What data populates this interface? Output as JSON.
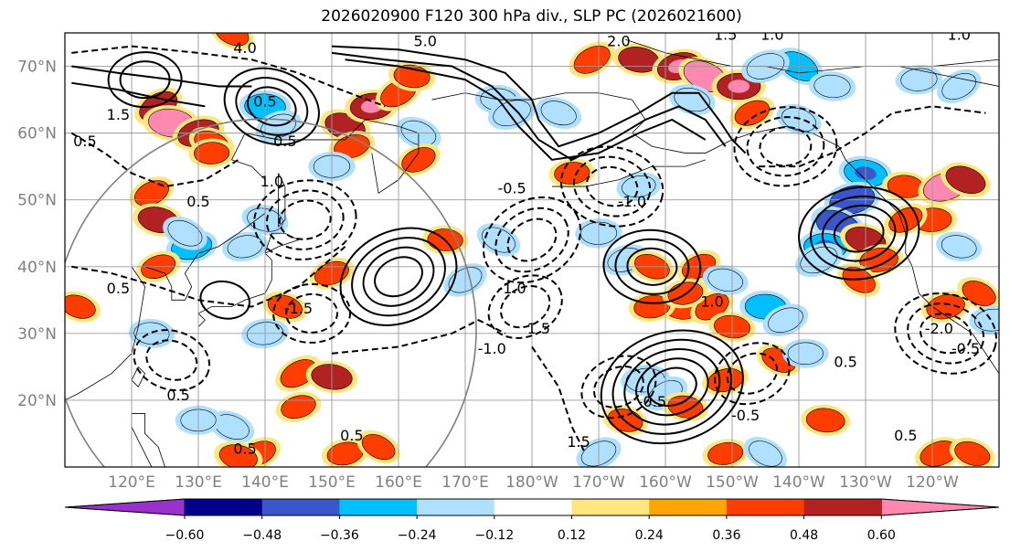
{
  "chart_data": {
    "type": "heatmap",
    "title": "2026020900 F120 300 hPa div., SLP PC (2026021600)",
    "lat_ticks": [
      "20°N",
      "30°N",
      "40°N",
      "50°N",
      "60°N",
      "70°N"
    ],
    "lon_ticks": [
      "120°E",
      "130°E",
      "140°E",
      "150°E",
      "160°E",
      "170°E",
      "180°W",
      "170°W",
      "160°W",
      "150°W",
      "140°W",
      "130°W",
      "120°W"
    ],
    "lat_range": [
      10,
      75
    ],
    "lon_range": [
      110,
      250
    ],
    "grid": true,
    "colorbar": {
      "orientation": "horizontal",
      "extend": "both",
      "levels": [
        -0.72,
        -0.6,
        -0.48,
        -0.36,
        -0.24,
        -0.12,
        0.12,
        0.24,
        0.36,
        0.48,
        0.6,
        0.72
      ],
      "tick_labels": [
        "−0.60",
        "−0.48",
        "−0.36",
        "−0.24",
        "−0.12",
        "0.12",
        "0.24",
        "0.36",
        "0.48",
        "0.60"
      ],
      "colors": [
        "#9932cc",
        "#00008b",
        "#3a56c9",
        "#00bfff",
        "#b0e0ff",
        "#ffffff",
        "#ffe680",
        "#ffa500",
        "#ff3d00",
        "#b22222",
        "#ff88b0"
      ]
    },
    "contour_labels": [
      "5.0",
      "4.0",
      "2.0",
      "1.5",
      "1.0",
      "0.5",
      "-0.5",
      "-1.0",
      "-1.5",
      "-2.0"
    ],
    "contour_label_items": [
      {
        "text": "5.0",
        "lon": 164,
        "lat": 73
      },
      {
        "text": "4.0",
        "lon": 137,
        "lat": 72
      },
      {
        "text": "2.0",
        "lon": 193,
        "lat": 73
      },
      {
        "text": "1.5",
        "lon": 209,
        "lat": 74
      },
      {
        "text": "1.0",
        "lon": 216,
        "lat": 74
      },
      {
        "text": "1.0",
        "lon": 244,
        "lat": 74
      },
      {
        "text": "1.5",
        "lon": 118,
        "lat": 62
      },
      {
        "text": "0.5",
        "lon": 113,
        "lat": 58
      },
      {
        "text": "0.5",
        "lon": 140,
        "lat": 64
      },
      {
        "text": "0.5",
        "lon": 143,
        "lat": 58
      },
      {
        "text": "1.0",
        "lon": 141,
        "lat": 52
      },
      {
        "text": "0.5",
        "lon": 130,
        "lat": 49
      },
      {
        "text": "-0.5",
        "lon": 177,
        "lat": 51
      },
      {
        "text": "-1.0",
        "lon": 195,
        "lat": 49
      },
      {
        "text": "-1.0",
        "lon": 177,
        "lat": 36
      },
      {
        "text": "-1.5",
        "lon": 145,
        "lat": 33
      },
      {
        "text": "0.5",
        "lon": 118,
        "lat": 36
      },
      {
        "text": "-1.0",
        "lon": 174,
        "lat": 27
      },
      {
        "text": "1.0",
        "lon": 207,
        "lat": 34
      },
      {
        "text": "1.5",
        "lon": 181,
        "lat": 30
      },
      {
        "text": "-0.5",
        "lon": 198,
        "lat": 19
      },
      {
        "text": "-0.5",
        "lon": 212,
        "lat": 17
      },
      {
        "text": "1.5",
        "lon": 187,
        "lat": 13
      },
      {
        "text": "0.5",
        "lon": 127,
        "lat": 20
      },
      {
        "text": "0.5",
        "lon": 153,
        "lat": 14
      },
      {
        "text": "0.5",
        "lon": 137,
        "lat": 12
      },
      {
        "text": "0.5",
        "lon": 236,
        "lat": 14
      },
      {
        "text": "0.5",
        "lon": 227,
        "lat": 25
      },
      {
        "text": "-2.0",
        "lon": 241,
        "lat": 30
      },
      {
        "text": "-0.5",
        "lon": 245,
        "lat": 27
      }
    ],
    "div_cells": [
      {
        "lon": 124,
        "lat": 64,
        "v": 0.4
      },
      {
        "lon": 126,
        "lat": 61.5,
        "v": 0.52
      },
      {
        "lon": 130,
        "lat": 60,
        "v": 0.42
      },
      {
        "lon": 132,
        "lat": 58.5,
        "v": 0.3
      },
      {
        "lon": 132,
        "lat": 57,
        "v": 0.28
      },
      {
        "lon": 123,
        "lat": 51,
        "v": 0.3
      },
      {
        "lon": 124,
        "lat": 47,
        "v": 0.4
      },
      {
        "lon": 129,
        "lat": 43,
        "v": -0.4
      },
      {
        "lon": 128,
        "lat": 45,
        "v": -0.3
      },
      {
        "lon": 140,
        "lat": 64,
        "v": -0.4
      },
      {
        "lon": 142,
        "lat": 61,
        "v": -0.3
      },
      {
        "lon": 152,
        "lat": 61,
        "v": 0.4
      },
      {
        "lon": 156,
        "lat": 64,
        "v": 0.45
      },
      {
        "lon": 160,
        "lat": 66,
        "v": 0.35
      },
      {
        "lon": 162,
        "lat": 68.5,
        "v": 0.3
      },
      {
        "lon": 153,
        "lat": 58,
        "v": 0.3
      },
      {
        "lon": 163,
        "lat": 60,
        "v": -0.3
      },
      {
        "lon": 150,
        "lat": 55,
        "v": -0.3
      },
      {
        "lon": 163,
        "lat": 56,
        "v": 0.28
      },
      {
        "lon": 140,
        "lat": 47,
        "v": -0.3
      },
      {
        "lon": 137,
        "lat": 43,
        "v": -0.28
      },
      {
        "lon": 135,
        "lat": 75,
        "v": 0.3
      },
      {
        "lon": 175,
        "lat": 65,
        "v": -0.3
      },
      {
        "lon": 177,
        "lat": 63,
        "v": -0.35
      },
      {
        "lon": 184,
        "lat": 63,
        "v": -0.3
      },
      {
        "lon": 186,
        "lat": 54,
        "v": 0.28
      },
      {
        "lon": 189,
        "lat": 71,
        "v": 0.35
      },
      {
        "lon": 196,
        "lat": 71,
        "v": 0.4
      },
      {
        "lon": 202,
        "lat": 70,
        "v": 0.45
      },
      {
        "lon": 206,
        "lat": 68.5,
        "v": 0.5
      },
      {
        "lon": 211,
        "lat": 67,
        "v": 0.45
      },
      {
        "lon": 213,
        "lat": 63,
        "v": 0.3
      },
      {
        "lon": 204,
        "lat": 65,
        "v": -0.3
      },
      {
        "lon": 196,
        "lat": 52,
        "v": -0.25
      },
      {
        "lon": 220,
        "lat": 70,
        "v": -0.4
      },
      {
        "lon": 225,
        "lat": 67,
        "v": -0.3
      },
      {
        "lon": 215,
        "lat": 70,
        "v": -0.35
      },
      {
        "lon": 220,
        "lat": 62,
        "v": -0.28
      },
      {
        "lon": 238,
        "lat": 68,
        "v": -0.3
      },
      {
        "lon": 244,
        "lat": 67,
        "v": -0.3
      },
      {
        "lon": 230,
        "lat": 54,
        "v": -0.45
      },
      {
        "lon": 228,
        "lat": 50,
        "v": -0.5
      },
      {
        "lon": 226,
        "lat": 46,
        "v": -0.55
      },
      {
        "lon": 224,
        "lat": 43,
        "v": -0.45
      },
      {
        "lon": 223,
        "lat": 41,
        "v": -0.35
      },
      {
        "lon": 230,
        "lat": 44,
        "v": 0.4
      },
      {
        "lon": 232,
        "lat": 41,
        "v": 0.35
      },
      {
        "lon": 229,
        "lat": 38,
        "v": 0.28
      },
      {
        "lon": 236,
        "lat": 52,
        "v": 0.3
      },
      {
        "lon": 242,
        "lat": 52,
        "v": 0.5
      },
      {
        "lon": 245,
        "lat": 53,
        "v": 0.4
      },
      {
        "lon": 240,
        "lat": 47,
        "v": 0.35
      },
      {
        "lon": 236,
        "lat": 47,
        "v": 0.28
      },
      {
        "lon": 244,
        "lat": 43,
        "v": -0.28
      },
      {
        "lon": 242,
        "lat": 34,
        "v": 0.35
      },
      {
        "lon": 247,
        "lat": 36,
        "v": 0.28
      },
      {
        "lon": 215,
        "lat": 34,
        "v": -0.4
      },
      {
        "lon": 218,
        "lat": 32,
        "v": -0.3
      },
      {
        "lon": 202,
        "lat": 34,
        "v": 0.35
      },
      {
        "lon": 198,
        "lat": 34,
        "v": 0.3
      },
      {
        "lon": 207,
        "lat": 34,
        "v": 0.3
      },
      {
        "lon": 210,
        "lat": 31,
        "v": 0.3
      },
      {
        "lon": 194,
        "lat": 41,
        "v": -0.3
      },
      {
        "lon": 198,
        "lat": 40,
        "v": 0.3
      },
      {
        "lon": 190,
        "lat": 45,
        "v": -0.3
      },
      {
        "lon": 205,
        "lat": 40,
        "v": 0.28
      },
      {
        "lon": 209,
        "lat": 38,
        "v": -0.28
      },
      {
        "lon": 203,
        "lat": 36,
        "v": 0.28
      },
      {
        "lon": 175,
        "lat": 44,
        "v": -0.28
      },
      {
        "lon": 167,
        "lat": 44,
        "v": 0.28
      },
      {
        "lon": 150,
        "lat": 39,
        "v": 0.28
      },
      {
        "lon": 143,
        "lat": 34,
        "v": 0.28
      },
      {
        "lon": 140,
        "lat": 30,
        "v": -0.3
      },
      {
        "lon": 145,
        "lat": 24,
        "v": 0.35
      },
      {
        "lon": 150,
        "lat": 23.5,
        "v": 0.4
      },
      {
        "lon": 145,
        "lat": 19,
        "v": 0.28
      },
      {
        "lon": 135,
        "lat": 16,
        "v": -0.3
      },
      {
        "lon": 130,
        "lat": 17,
        "v": -0.28
      },
      {
        "lon": 139,
        "lat": 12,
        "v": 0.3
      },
      {
        "lon": 136,
        "lat": 11.5,
        "v": 0.35
      },
      {
        "lon": 152,
        "lat": 12,
        "v": 0.3
      },
      {
        "lon": 157,
        "lat": 13,
        "v": 0.28
      },
      {
        "lon": 123,
        "lat": 30,
        "v": -0.28
      },
      {
        "lon": 124,
        "lat": 40,
        "v": 0.28
      },
      {
        "lon": 112,
        "lat": 34,
        "v": 0.28
      },
      {
        "lon": 197,
        "lat": 23,
        "v": -0.35
      },
      {
        "lon": 200,
        "lat": 21,
        "v": -0.3
      },
      {
        "lon": 203,
        "lat": 19,
        "v": 0.28
      },
      {
        "lon": 209,
        "lat": 23,
        "v": 0.3
      },
      {
        "lon": 217,
        "lat": 26,
        "v": 0.28
      },
      {
        "lon": 221,
        "lat": 27,
        "v": -0.28
      },
      {
        "lon": 190,
        "lat": 12,
        "v": -0.3
      },
      {
        "lon": 194,
        "lat": 17,
        "v": 0.28
      },
      {
        "lon": 209,
        "lat": 12,
        "v": 0.28
      },
      {
        "lon": 215,
        "lat": 12,
        "v": -0.28
      },
      {
        "lon": 224,
        "lat": 17,
        "v": 0.35
      },
      {
        "lon": 241,
        "lat": 12,
        "v": 0.35
      },
      {
        "lon": 246,
        "lat": 12,
        "v": 0.3
      },
      {
        "lon": 249,
        "lat": 32,
        "v": -0.28
      },
      {
        "lon": 170,
        "lat": 38,
        "v": -0.28
      }
    ],
    "slp_solid_centers": [
      {
        "lon": 160,
        "lat": 38.5,
        "rings": 4
      },
      {
        "lon": 198,
        "lat": 40,
        "rings": 3
      },
      {
        "lon": 201,
        "lat": 22,
        "rings": 5
      },
      {
        "lon": 134,
        "lat": 35,
        "rings": 1
      },
      {
        "lon": 229,
        "lat": 45,
        "rings": 4
      },
      {
        "lon": 141,
        "lat": 64,
        "rings": 3
      },
      {
        "lon": 122,
        "lat": 68,
        "rings": 2
      }
    ],
    "slp_dashed_centers": [
      {
        "lon": 180,
        "lat": 44,
        "rings": 3
      },
      {
        "lon": 192,
        "lat": 52,
        "rings": 3
      },
      {
        "lon": 146,
        "lat": 47,
        "rings": 3
      },
      {
        "lon": 179,
        "lat": 34,
        "rings": 2
      },
      {
        "lon": 242,
        "lat": 30,
        "rings": 3
      },
      {
        "lon": 218,
        "lat": 58,
        "rings": 3
      },
      {
        "lon": 193,
        "lat": 22,
        "rings": 2
      },
      {
        "lon": 126,
        "lat": 26,
        "rings": 2
      },
      {
        "lon": 147,
        "lat": 33,
        "rings": 2
      },
      {
        "lon": 213,
        "lat": 24,
        "rings": 2
      }
    ]
  }
}
